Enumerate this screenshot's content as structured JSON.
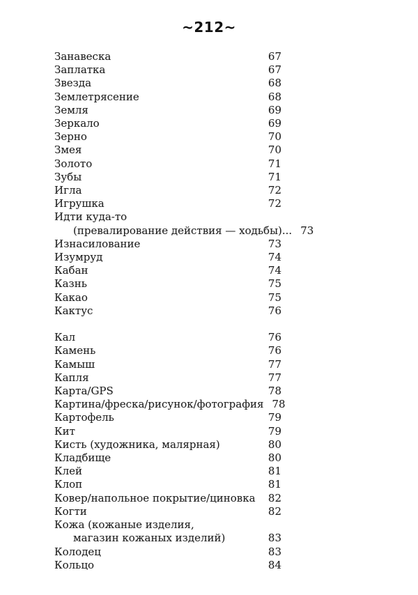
{
  "page": {
    "header": "~212~"
  },
  "colors": {
    "background": "#ffffff",
    "text": "#1e1e1e"
  },
  "toc": {
    "groups": [
      {
        "entries": [
          {
            "lines": [
              "Занавеска"
            ],
            "page": "67"
          },
          {
            "lines": [
              "Заплатка"
            ],
            "page": "67"
          },
          {
            "lines": [
              "Звезда"
            ],
            "page": "68"
          },
          {
            "lines": [
              "Землетрясение"
            ],
            "page": "68"
          },
          {
            "lines": [
              "Земля"
            ],
            "page": "69"
          },
          {
            "lines": [
              "Зеркало"
            ],
            "page": "69"
          },
          {
            "lines": [
              "Зерно"
            ],
            "page": "70"
          },
          {
            "lines": [
              "Змея"
            ],
            "page": "70"
          },
          {
            "lines": [
              "Золото"
            ],
            "page": "71"
          },
          {
            "lines": [
              "Зубы"
            ],
            "page": "71"
          },
          {
            "lines": [
              "Игла"
            ],
            "page": "72"
          },
          {
            "lines": [
              "Игрушка"
            ],
            "page": "72"
          },
          {
            "lines": [
              "Идти куда-то",
              "(превалирование действия — ходьбы)..."
            ],
            "page": "73"
          },
          {
            "lines": [
              "Изнасилование"
            ],
            "page": "73"
          },
          {
            "lines": [
              "Изумруд"
            ],
            "page": "74"
          },
          {
            "lines": [
              "Кабан"
            ],
            "page": "74"
          },
          {
            "lines": [
              "Казнь"
            ],
            "page": "75"
          },
          {
            "lines": [
              "Какао"
            ],
            "page": "75"
          },
          {
            "lines": [
              "Кактус"
            ],
            "page": "76"
          }
        ]
      },
      {
        "entries": [
          {
            "lines": [
              "Кал"
            ],
            "page": "76"
          },
          {
            "lines": [
              "Камень"
            ],
            "page": "76"
          },
          {
            "lines": [
              "Камыш"
            ],
            "page": "77"
          },
          {
            "lines": [
              "Капля"
            ],
            "page": "77"
          },
          {
            "lines": [
              "Карта/GPS"
            ],
            "page": "78"
          },
          {
            "lines": [
              "Картина/фреска/рисунок/фотография"
            ],
            "page": "78"
          },
          {
            "lines": [
              "Картофель"
            ],
            "page": "79"
          },
          {
            "lines": [
              "Кит"
            ],
            "page": "79"
          },
          {
            "lines": [
              "Кисть (художника, малярная)"
            ],
            "page": "80"
          },
          {
            "lines": [
              "Кладбище"
            ],
            "page": "80"
          },
          {
            "lines": [
              "Клей"
            ],
            "page": "81"
          },
          {
            "lines": [
              "Клоп"
            ],
            "page": "81"
          },
          {
            "lines": [
              "Ковер/напольное покрытие/циновка"
            ],
            "page": "82"
          },
          {
            "lines": [
              "Когти"
            ],
            "page": "82"
          },
          {
            "lines": [
              "Кожа (кожаные изделия,",
              "магазин кожаных изделий)"
            ],
            "page": "83"
          },
          {
            "lines": [
              "Колодец"
            ],
            "page": "83"
          },
          {
            "lines": [
              "Кольцо"
            ],
            "page": "84"
          }
        ]
      }
    ]
  }
}
